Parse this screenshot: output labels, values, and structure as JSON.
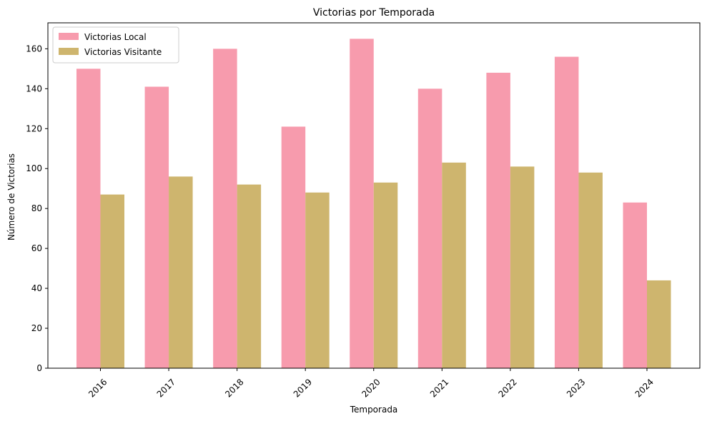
{
  "chart_data": {
    "type": "bar",
    "title": "Victorias por Temporada",
    "xlabel": "Temporada",
    "ylabel": "Número de Victorias",
    "categories": [
      "2016",
      "2017",
      "2018",
      "2019",
      "2020",
      "2021",
      "2022",
      "2023",
      "2024"
    ],
    "series": [
      {
        "name": "Victorias Local",
        "color": "#f79bad",
        "values": [
          150,
          141,
          160,
          121,
          165,
          140,
          148,
          156,
          83
        ]
      },
      {
        "name": "Victorias Visitante",
        "color": "#ceb56e",
        "values": [
          87,
          96,
          92,
          88,
          93,
          103,
          101,
          98,
          44
        ]
      }
    ],
    "ylim": [
      0,
      173
    ],
    "yticks": [
      0,
      20,
      40,
      60,
      80,
      100,
      120,
      140,
      160
    ],
    "grid": false,
    "legend_position": "top-left",
    "xtick_rotation": 45
  }
}
